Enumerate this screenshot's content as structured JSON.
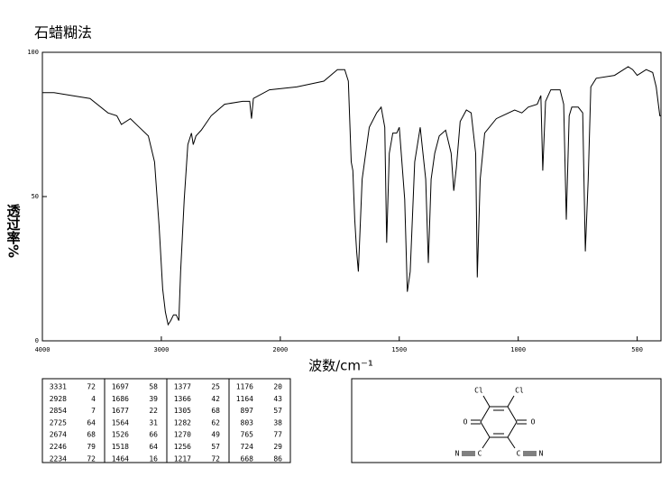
{
  "chart_data": {
    "type": "line",
    "title": "石蜡糊法",
    "ylabel": "透过率%",
    "xlabel": "波数/cm⁻¹",
    "color": "#000000",
    "x": [
      4000,
      3902,
      3751,
      3600,
      3449,
      3374,
      3336,
      3260,
      3185,
      3109,
      3057,
      3019,
      2989,
      2966,
      2943,
      2921,
      2898,
      2875,
      2853,
      2838,
      2808,
      2777,
      2747,
      2732,
      2709,
      2664,
      2581,
      2468,
      2317,
      2257,
      2242,
      2226,
      2091,
      1931,
      1817,
      1760,
      1729,
      1714,
      1702,
      1695,
      1687,
      1679,
      1672,
      1656,
      1626,
      1595,
      1576,
      1561,
      1553,
      1542,
      1527,
      1511,
      1500,
      1477,
      1466,
      1454,
      1435,
      1412,
      1389,
      1378,
      1366,
      1351,
      1332,
      1305,
      1282,
      1271,
      1260,
      1244,
      1218,
      1198,
      1179,
      1172,
      1160,
      1141,
      1092,
      1015,
      985,
      958,
      920,
      905,
      897,
      885,
      863,
      824,
      809,
      798,
      786,
      775,
      748,
      729,
      718,
      706,
      695,
      672,
      595,
      538,
      519,
      500,
      462,
      435,
      420,
      405,
      400
    ],
    "values": [
      86,
      86,
      85,
      84,
      79,
      78,
      75,
      77,
      74,
      71,
      62,
      40,
      18,
      10,
      5.6,
      7,
      9,
      9,
      7,
      24,
      49,
      68,
      72,
      68,
      71,
      73,
      78,
      82,
      83,
      83,
      77,
      84,
      87,
      88,
      90,
      94,
      94,
      90,
      62,
      59,
      42,
      31,
      24,
      56,
      74,
      79,
      81,
      74,
      34,
      65,
      72,
      72,
      74,
      49,
      17,
      24,
      62,
      74,
      56,
      27,
      56,
      65,
      71,
      73,
      65,
      52,
      60,
      76,
      80,
      79,
      65,
      22,
      56,
      72,
      77,
      80,
      79,
      81,
      82,
      85,
      59,
      83,
      87,
      87,
      82,
      42,
      78,
      81,
      81,
      79,
      31,
      56,
      88,
      91,
      92,
      95,
      94,
      92,
      94,
      93,
      88,
      78,
      78
    ],
    "xlim": [
      4000,
      400
    ],
    "x_scale_break": 2000,
    "xticks": [
      4000,
      3000,
      2000,
      1500,
      1000,
      500
    ],
    "ylim": [
      0,
      100
    ],
    "yticks": [
      0,
      50,
      100
    ]
  },
  "peak_table": {
    "groups": [
      [
        [
          3331,
          72
        ],
        [
          2928,
          4
        ],
        [
          2854,
          7
        ],
        [
          2725,
          64
        ],
        [
          2674,
          68
        ],
        [
          2246,
          79
        ],
        [
          2234,
          72
        ]
      ],
      [
        [
          1697,
          58
        ],
        [
          1686,
          39
        ],
        [
          1677,
          22
        ],
        [
          1564,
          31
        ],
        [
          1526,
          66
        ],
        [
          1518,
          64
        ],
        [
          1464,
          16
        ]
      ],
      [
        [
          1377,
          25
        ],
        [
          1366,
          42
        ],
        [
          1305,
          68
        ],
        [
          1282,
          62
        ],
        [
          1270,
          49
        ],
        [
          1256,
          57
        ],
        [
          1217,
          72
        ]
      ],
      [
        [
          1176,
          20
        ],
        [
          1164,
          43
        ],
        [
          897,
          57
        ],
        [
          803,
          38
        ],
        [
          765,
          77
        ],
        [
          724,
          29
        ],
        [
          668,
          86
        ]
      ]
    ]
  },
  "structure": {
    "atoms": [
      "Cl",
      "Cl",
      "O",
      "O",
      "N",
      "C",
      "C",
      "N"
    ]
  }
}
